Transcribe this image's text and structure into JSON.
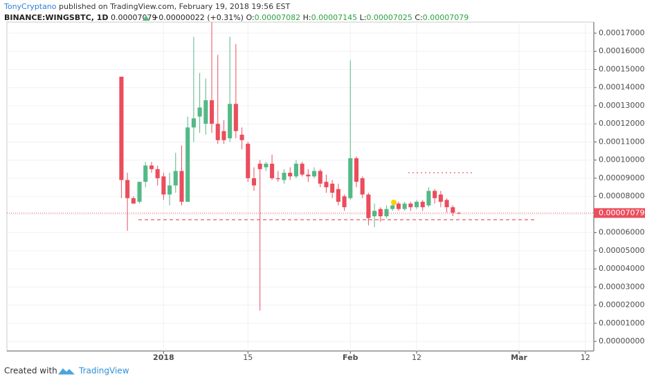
{
  "header": {
    "author": "TonyCryptano",
    "published": "published on TradingView.com, February 19, 2018 19:56 EST",
    "symbol": "BINANCE:WINGSBTC, 1D",
    "price": "0.00007079",
    "change": "+0.00000022 (+0.31%)",
    "open_label": "O:",
    "open": "0.00007082",
    "high_label": "H:",
    "high": "0.00007145",
    "low_label": "L:",
    "low": "0.00007025",
    "close_label": "C:",
    "close": "0.00007079"
  },
  "footer": {
    "created": "Created with",
    "brand": "TradingView"
  },
  "chart_data": {
    "type": "candlestick",
    "up_color": "#53b987",
    "down_color": "#eb4d5c",
    "grid": true,
    "last_price": {
      "value": 7.079e-05,
      "label": "0.00007079"
    },
    "xlim": [
      -26,
      71.4
    ],
    "xticks": [
      {
        "value": 0,
        "label": "2018"
      },
      {
        "value": 14,
        "label": "15"
      },
      {
        "value": 31,
        "label": "Feb"
      },
      {
        "value": 42,
        "label": "12"
      },
      {
        "value": 59,
        "label": "Mar"
      },
      {
        "value": 70,
        "label": "12"
      }
    ],
    "ylim": [
      -5.3e-06,
      0.0001761
    ],
    "yticks": [
      {
        "value": 0,
        "label": "0.00000000"
      },
      {
        "value": 1e-05,
        "label": "0.00001000"
      },
      {
        "value": 2e-05,
        "label": "0.00002000"
      },
      {
        "value": 3e-05,
        "label": "0.00003000"
      },
      {
        "value": 4e-05,
        "label": "0.00004000"
      },
      {
        "value": 5e-05,
        "label": "0.00005000"
      },
      {
        "value": 6e-05,
        "label": "0.00006000"
      },
      {
        "value": 7e-05,
        "label": "0.00007000"
      },
      {
        "value": 8e-05,
        "label": "0.00008000"
      },
      {
        "value": 9e-05,
        "label": "0.00009000"
      },
      {
        "value": 0.0001,
        "label": "0.00010000"
      },
      {
        "value": 0.00011,
        "label": "0.00011000"
      },
      {
        "value": 0.00012,
        "label": "0.00012000"
      },
      {
        "value": 0.00013,
        "label": "0.00013000"
      },
      {
        "value": 0.00014,
        "label": "0.00014000"
      },
      {
        "value": 0.00015,
        "label": "0.00015000"
      },
      {
        "value": 0.00016,
        "label": "0.00016000"
      },
      {
        "value": 0.00017,
        "label": "0.00017000"
      }
    ],
    "x": [
      -7,
      -6,
      -5,
      -4,
      -3,
      -2,
      -1,
      0,
      1,
      2,
      3,
      4,
      5,
      6,
      7,
      8,
      9,
      10,
      11,
      12,
      13,
      14,
      15,
      16,
      17,
      18,
      19,
      20,
      21,
      22,
      23,
      24,
      25,
      26,
      27,
      28,
      29,
      30,
      31,
      32,
      33,
      34,
      35,
      36,
      37,
      38,
      39,
      40,
      41,
      42,
      43,
      44,
      45,
      46,
      47,
      48,
      49
    ],
    "open": [
      0.000146,
      8.9e-05,
      7.9e-05,
      7.7e-05,
      8.8e-05,
      9.7e-05,
      9.5e-05,
      9.1e-05,
      8.1e-05,
      8.6e-05,
      9.4e-05,
      7.7e-05,
      0.000118,
      0.000124,
      0.00012,
      0.000133,
      0.00012,
      0.000116,
      0.000112,
      0.000131,
      0.000114,
      0.000109,
      9e-05,
      9.8e-05,
      9.6e-05,
      9.8e-05,
      9e-05,
      8.9e-05,
      9.3e-05,
      9.1e-05,
      9.8e-05,
      9.2e-05,
      9.1e-05,
      9.4e-05,
      8.8e-05,
      8.7e-05,
      8.4e-05,
      8e-05,
      7.9e-05,
      0.000101,
      9e-05,
      8.1e-05,
      6.9e-05,
      7.3e-05,
      6.9e-05,
      7.3e-05,
      7.6e-05,
      7.3e-05,
      7.6e-05,
      7.4e-05,
      7.7e-05,
      7.5e-05,
      8.3e-05,
      8.1e-05,
      7.8e-05,
      7.4e-05,
      7.082e-05
    ],
    "high": [
      0.000146,
      9.3e-05,
      8e-05,
      8.8e-05,
      9.9e-05,
      9.9e-05,
      9.7e-05,
      9.3e-05,
      9.3e-05,
      0.000104,
      0.000108,
      0.000124,
      0.000168,
      0.000148,
      0.000145,
      0.000176,
      0.000158,
      0.000122,
      0.000168,
      0.000164,
      0.000118,
      0.00011,
      9.6e-05,
      0.0001,
      9.9e-05,
      0.000103,
      9.4e-05,
      9.5e-05,
      9.6e-05,
      0.0001,
      9.9e-05,
      9.5e-05,
      9.6e-05,
      9.5e-05,
      9.2e-05,
      8.9e-05,
      8.7e-05,
      8.1e-05,
      0.000155,
      0.000102,
      9.1e-05,
      8.2e-05,
      7.6e-05,
      7.4e-05,
      7.5e-05,
      7.7e-05,
      7.7e-05,
      7.7e-05,
      7.7e-05,
      7.8e-05,
      7.8e-05,
      8.5e-05,
      8.4e-05,
      8.3e-05,
      7.9e-05,
      7.5e-05,
      7.145e-05
    ],
    "low": [
      7.9e-05,
      6.1e-05,
      7.6e-05,
      7.6e-05,
      8.5e-05,
      9.3e-05,
      8.6e-05,
      7.8e-05,
      7.5e-05,
      8.2e-05,
      7.5e-05,
      7.7e-05,
      0.00011,
      0.000115,
      0.000114,
      0.000115,
      0.000109,
      0.000109,
      0.00011,
      0.000112,
      0.000106,
      8.8e-05,
      8.3e-05,
      1.7e-05,
      9.4e-05,
      8.9e-05,
      8.8e-05,
      8.7e-05,
      8.9e-05,
      9e-05,
      9.1e-05,
      8.8e-05,
      9e-05,
      8.5e-05,
      8.2e-05,
      7.9e-05,
      7.5e-05,
      7.2e-05,
      7.8e-05,
      8.5e-05,
      7.9e-05,
      6.4e-05,
      6.3e-05,
      6.6e-05,
      6.8e-05,
      7.2e-05,
      7.2e-05,
      7.2e-05,
      7.2e-05,
      7.3e-05,
      7.2e-05,
      7.4e-05,
      7.6e-05,
      7.4e-05,
      7.1e-05,
      6.9e-05,
      7.025e-05
    ],
    "close": [
      8.9e-05,
      7.9e-05,
      7.6e-05,
      8.8e-05,
      9.7e-05,
      9.5e-05,
      9e-05,
      8.1e-05,
      8.6e-05,
      9.4e-05,
      7.7e-05,
      0.000118,
      0.000123,
      0.000129,
      0.000133,
      0.00012,
      0.000111,
      0.000111,
      0.000131,
      0.000116,
      0.000111,
      9e-05,
      8.6e-05,
      9.5e-05,
      9.8e-05,
      9e-05,
      8.95e-05,
      9.3e-05,
      9.1e-05,
      9.8e-05,
      9.2e-05,
      9.1e-05,
      9.4e-05,
      8.7e-05,
      8.5e-05,
      8.2e-05,
      7.7e-05,
      7.4e-05,
      0.000101,
      8.8e-05,
      8.1e-05,
      6.8e-05,
      7.2e-05,
      6.9e-05,
      7.3e-05,
      7.5e-05,
      7.3e-05,
      7.6e-05,
      7.4e-05,
      7.7e-05,
      7.4e-05,
      8.3e-05,
      7.9e-05,
      7.7e-05,
      7.4e-05,
      7.1e-05,
      7.079e-05
    ]
  }
}
